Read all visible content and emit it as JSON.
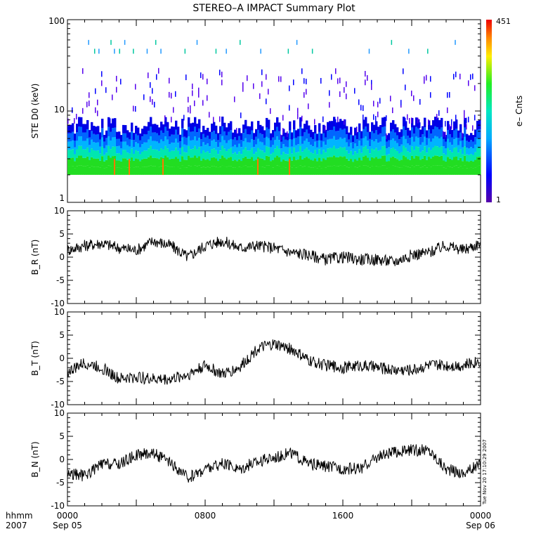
{
  "title": "STEREO–A IMPACT Summary Plot",
  "footer_left": [
    "hhmm",
    "2007"
  ],
  "timestamp_vertical": "Tue Nov 20 17:10:29 2007",
  "chart_data": [
    {
      "type": "heatmap",
      "ylabel": "STE D0 (keV)",
      "y_scale": "log",
      "ylim": [
        1,
        100
      ],
      "y_ticks": [
        "1",
        "10",
        "100"
      ],
      "colorbar": {
        "label": "e– Cnts",
        "min": 1,
        "max": 451,
        "min_label": "1",
        "max_label": "451"
      },
      "description_of_values": "Dense counts from ~2 to ~6 keV across the full day, sparse hits up to ~60 keV",
      "dense_band_keV": [
        2,
        6
      ],
      "sparse_max_keV": 60
    },
    {
      "type": "line",
      "ylabel": "B_R (nT)",
      "ylim": [
        -10,
        10
      ],
      "y_ticks": [
        "10",
        "5",
        "0",
        "-5",
        "-10"
      ],
      "x_hours": [
        0,
        1,
        2,
        3,
        4,
        5,
        6,
        7,
        8,
        9,
        10,
        11,
        12,
        13,
        14,
        15,
        16,
        17,
        18,
        19,
        20,
        21,
        22,
        23,
        24
      ],
      "values": [
        1.5,
        2.5,
        3,
        2,
        1.5,
        3.5,
        2.5,
        0,
        2.5,
        3.5,
        2,
        2.5,
        2,
        1,
        0.5,
        -0.5,
        0,
        -0.5,
        -0.5,
        -1,
        0.5,
        1,
        2.5,
        1.5,
        3
      ]
    },
    {
      "type": "line",
      "ylabel": "B_T (nT)",
      "ylim": [
        -10,
        10
      ],
      "y_ticks": [
        "10",
        "5",
        "0",
        "-5",
        "-10"
      ],
      "x_hours": [
        0,
        1,
        2,
        3,
        4,
        5,
        6,
        7,
        8,
        9,
        10,
        11,
        12,
        13,
        14,
        15,
        16,
        17,
        18,
        19,
        20,
        21,
        22,
        23,
        24
      ],
      "values": [
        -3,
        -1,
        -2,
        -4.5,
        -4,
        -4.5,
        -4.5,
        -3.5,
        -1.5,
        -3.5,
        -2,
        2,
        3,
        2,
        -0.5,
        -1.5,
        -2,
        -1.5,
        -2,
        -2.5,
        -2.5,
        -1.5,
        -1.5,
        -1.5,
        -0.5
      ]
    },
    {
      "type": "line",
      "ylabel": "B_N (nT)",
      "ylim": [
        -10,
        10
      ],
      "y_ticks": [
        "10",
        "5",
        "0",
        "-5",
        "-10"
      ],
      "x_hours": [
        0,
        1,
        2,
        3,
        4,
        5,
        6,
        7,
        8,
        9,
        10,
        11,
        12,
        13,
        14,
        15,
        16,
        17,
        18,
        19,
        20,
        21,
        22,
        23,
        24
      ],
      "values": [
        -3,
        -3.5,
        -1,
        -1,
        1,
        1.5,
        -1,
        -4,
        -2,
        -1,
        -2,
        -0.5,
        0.5,
        1.5,
        -1,
        -1.5,
        -2,
        -2,
        0.5,
        1.5,
        2,
        2,
        -2,
        -3,
        -1
      ]
    }
  ],
  "x_axis": {
    "ticks": [
      {
        "hour": 0,
        "top": "0000",
        "bottom": "Sep 05"
      },
      {
        "hour": 8,
        "top": "0800",
        "bottom": ""
      },
      {
        "hour": 16,
        "top": "1600",
        "bottom": ""
      },
      {
        "hour": 24,
        "top": "0000",
        "bottom": "Sep 06"
      }
    ]
  }
}
